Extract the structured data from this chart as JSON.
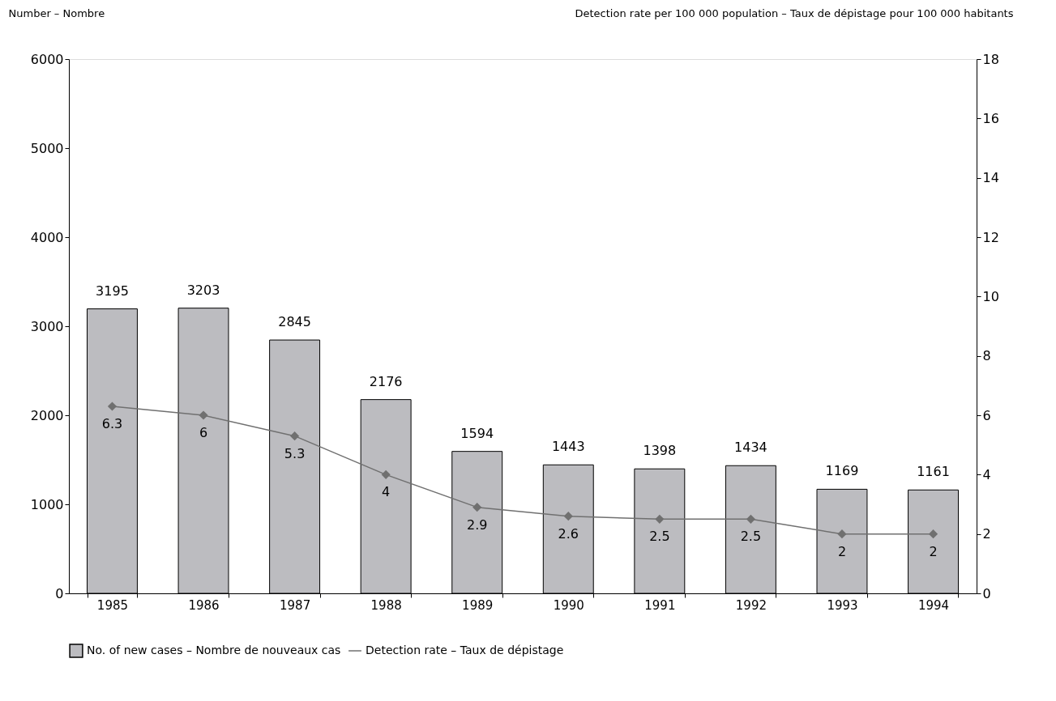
{
  "chart_data": {
    "type": "bar",
    "ylabel": "Number – Nombre",
    "y2label": "Detection rate per 100 000 population – Taux de dépistage pour 100 000 habitants",
    "categories": [
      "1985",
      "1986",
      "1987",
      "1988",
      "1989",
      "1990",
      "1991",
      "1992",
      "1993",
      "1994"
    ],
    "series": [
      {
        "name": "No. of new cases – Nombre de nouveaux cas",
        "color": "#bcbcc0",
        "values": [
          3195,
          3203,
          2845,
          2176,
          1594,
          1443,
          1398,
          1434,
          1169,
          1161
        ]
      },
      {
        "name": "Detection rate – Taux de dépistage",
        "type": "line",
        "axis": "y2",
        "color": "#707070",
        "marker": "diamond",
        "values": [
          6.3,
          6,
          5.3,
          4,
          2.9,
          2.6,
          2.5,
          2.5,
          2,
          2
        ]
      }
    ],
    "ylim": [
      0,
      6000
    ],
    "yticks": [
      0,
      1000,
      2000,
      3000,
      4000,
      5000,
      6000
    ],
    "y2lim": [
      0,
      18
    ],
    "y2ticks": [
      0,
      2,
      4,
      6,
      8,
      10,
      12,
      14,
      16,
      18
    ],
    "data_labels": true,
    "grid": false,
    "legend": "bottom"
  }
}
